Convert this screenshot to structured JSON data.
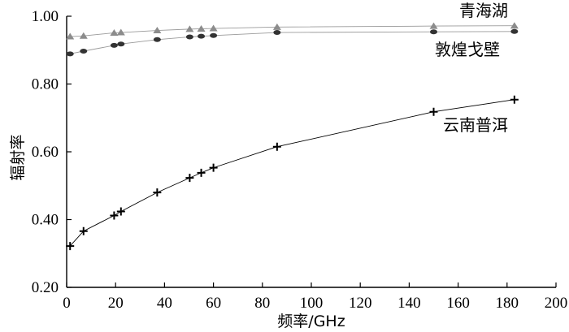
{
  "chart_data": {
    "type": "line",
    "xlabel": "频率/GHz",
    "ylabel": "辐射率",
    "xlim": [
      0,
      200
    ],
    "ylim": [
      0.2,
      1.0
    ],
    "x_ticks": [
      "0",
      "20",
      "40",
      "60",
      "80",
      "100",
      "120",
      "140",
      "160",
      "180",
      "200"
    ],
    "y_ticks": [
      "0.20",
      "0.40",
      "0.60",
      "0.80",
      "1.00"
    ],
    "grid": false,
    "legend": "inline labels near each curve",
    "series": [
      {
        "name": "青海湖",
        "marker": "triangle",
        "color": "#8c8c8c",
        "x": [
          1.4,
          6.9,
          19.4,
          22.2,
          37,
          50.3,
          55,
          60,
          86,
          150,
          183
        ],
        "y": [
          0.94,
          0.942,
          0.951,
          0.952,
          0.958,
          0.962,
          0.963,
          0.964,
          0.968,
          0.971,
          0.972
        ]
      },
      {
        "name": "敦煌戈壁",
        "marker": "ellipse",
        "color": "#333333",
        "x": [
          1.4,
          6.9,
          19.4,
          22.2,
          37,
          50.3,
          55,
          60,
          86,
          150,
          183
        ],
        "y": [
          0.889,
          0.897,
          0.914,
          0.918,
          0.931,
          0.939,
          0.941,
          0.943,
          0.952,
          0.954,
          0.955
        ]
      },
      {
        "name": "云南普洱",
        "marker": "plus",
        "color": "#000000",
        "x": [
          1.4,
          6.9,
          19.4,
          22.2,
          37,
          50.3,
          55,
          60,
          86,
          150,
          183
        ],
        "y": [
          0.322,
          0.366,
          0.412,
          0.424,
          0.48,
          0.523,
          0.538,
          0.553,
          0.615,
          0.718,
          0.754
        ]
      }
    ]
  }
}
